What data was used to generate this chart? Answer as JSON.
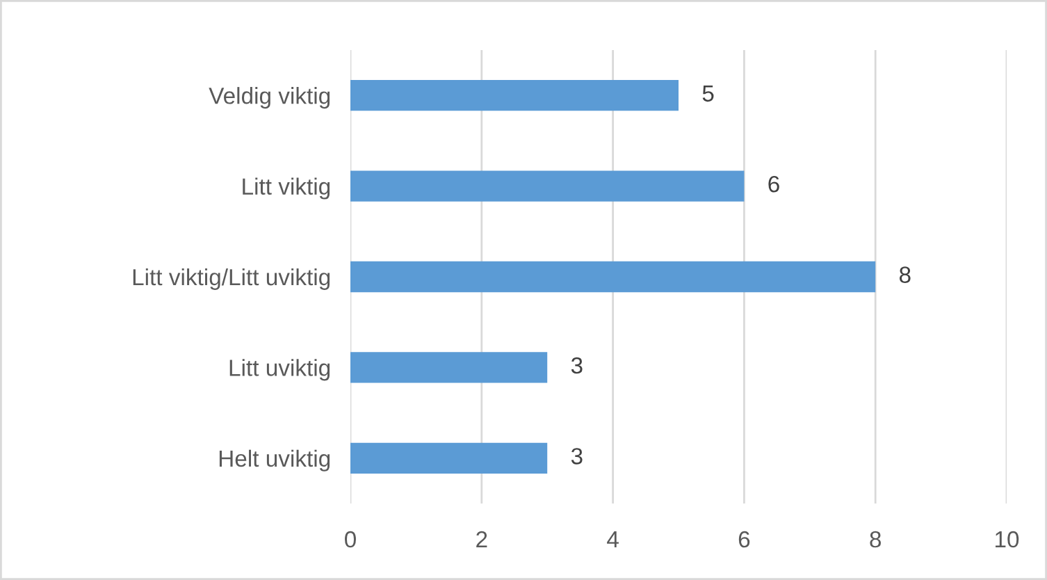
{
  "chart_data": {
    "type": "bar",
    "orientation": "horizontal",
    "categories": [
      "Veldig viktig",
      "Litt viktig",
      "Litt viktig/Litt uviktig",
      "Litt uviktig",
      "Helt uviktig"
    ],
    "values": [
      5,
      6,
      8,
      3,
      3
    ],
    "color": "#5b9bd5",
    "xlim": [
      0,
      10
    ],
    "xticks": [
      0,
      2,
      4,
      6,
      8,
      10
    ],
    "grid": "x",
    "data_labels": true,
    "legend": false
  }
}
